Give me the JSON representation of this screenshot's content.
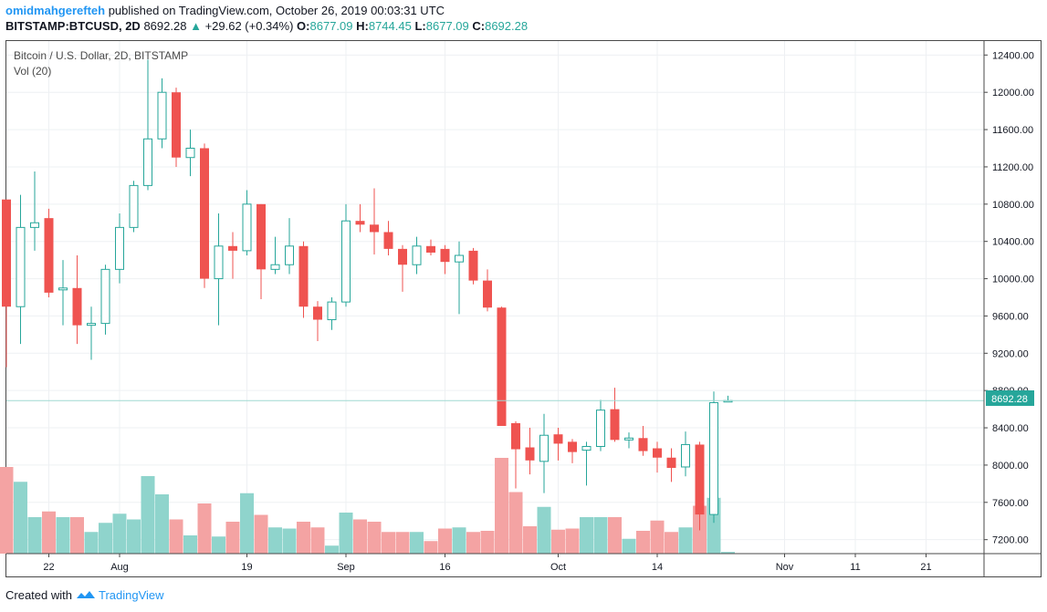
{
  "header": {
    "author": "omidmahgerefteh",
    "published": "published on TradingView.com, October 26, 2019 00:03:31 UTC",
    "symbol_line": {
      "symbol": "BITSTAMP:BTCUSD, 2D",
      "price": "8692.28",
      "arrow": "▲",
      "change": "+29.62 (+0.34%)",
      "o_label": "O:",
      "o_value": "8677.09",
      "h_label": "H:",
      "h_value": "8744.45",
      "l_label": "L:",
      "l_value": "8677.09",
      "c_label": "C:",
      "c_value": "8692.28"
    }
  },
  "legend": {
    "title": "Bitcoin / U.S. Dollar, 2D, BITSTAMP",
    "volume": "Vol (20)"
  },
  "price_tag": "8692.28",
  "footer": {
    "prefix": "Created with",
    "brand": "TradingView"
  },
  "colors": {
    "up": "#26a69a",
    "down": "#ef5350",
    "vol_up": "#8fd4cc",
    "vol_down": "#f4a3a3",
    "grid": "#eef0f3",
    "text": "#131722",
    "brand": "#2196f3"
  },
  "chart_data": {
    "type": "candlestick",
    "title": "Bitcoin / U.S. Dollar, 2D, BITSTAMP",
    "ylim": [
      7050,
      12550
    ],
    "y_ticks": [
      "12400.00",
      "12000.00",
      "11600.00",
      "11200.00",
      "10800.00",
      "10400.00",
      "10000.00",
      "9600.00",
      "9200.00",
      "8800.00",
      "8400.00",
      "8000.00",
      "7600.00",
      "7200.00"
    ],
    "x_ticks": [
      {
        "label": "22",
        "i": 3
      },
      {
        "label": "Aug",
        "i": 8
      },
      {
        "label": "19",
        "i": 17
      },
      {
        "label": "Sep",
        "i": 24
      },
      {
        "label": "16",
        "i": 31
      },
      {
        "label": "Oct",
        "i": 39
      },
      {
        "label": "14",
        "i": 46
      },
      {
        "label": "Nov",
        "i": 55
      },
      {
        "label": "11",
        "i": 60
      },
      {
        "label": "21",
        "i": 65
      }
    ],
    "candles": [
      {
        "o": 10850,
        "h": 10850,
        "l": 9050,
        "c": 9700
      },
      {
        "o": 9700,
        "h": 10900,
        "l": 9300,
        "c": 10550
      },
      {
        "o": 10550,
        "h": 11150,
        "l": 10300,
        "c": 10600
      },
      {
        "o": 10650,
        "h": 10750,
        "l": 9800,
        "c": 9850
      },
      {
        "o": 9880,
        "h": 10200,
        "l": 9500,
        "c": 9900
      },
      {
        "o": 9900,
        "h": 10250,
        "l": 9300,
        "c": 9500
      },
      {
        "o": 9500,
        "h": 9700,
        "l": 9130,
        "c": 9520
      },
      {
        "o": 9520,
        "h": 10150,
        "l": 9400,
        "c": 10100
      },
      {
        "o": 10100,
        "h": 10700,
        "l": 9950,
        "c": 10550
      },
      {
        "o": 10550,
        "h": 11050,
        "l": 10500,
        "c": 11000
      },
      {
        "o": 11000,
        "h": 12350,
        "l": 10950,
        "c": 11500
      },
      {
        "o": 11500,
        "h": 12150,
        "l": 11400,
        "c": 12000
      },
      {
        "o": 12000,
        "h": 12050,
        "l": 11200,
        "c": 11300
      },
      {
        "o": 11300,
        "h": 11600,
        "l": 11100,
        "c": 11400
      },
      {
        "o": 11400,
        "h": 11450,
        "l": 9900,
        "c": 10000
      },
      {
        "o": 10000,
        "h": 10700,
        "l": 9500,
        "c": 10350
      },
      {
        "o": 10350,
        "h": 10500,
        "l": 10000,
        "c": 10300
      },
      {
        "o": 10300,
        "h": 10950,
        "l": 10250,
        "c": 10800
      },
      {
        "o": 10800,
        "h": 10800,
        "l": 9780,
        "c": 10100
      },
      {
        "o": 10100,
        "h": 10450,
        "l": 10050,
        "c": 10150
      },
      {
        "o": 10150,
        "h": 10650,
        "l": 10050,
        "c": 10350
      },
      {
        "o": 10350,
        "h": 10400,
        "l": 9580,
        "c": 9700
      },
      {
        "o": 9700,
        "h": 9760,
        "l": 9330,
        "c": 9560
      },
      {
        "o": 9560,
        "h": 9800,
        "l": 9450,
        "c": 9750
      },
      {
        "o": 9750,
        "h": 10800,
        "l": 9700,
        "c": 10620
      },
      {
        "o": 10620,
        "h": 10800,
        "l": 10500,
        "c": 10580
      },
      {
        "o": 10580,
        "h": 10970,
        "l": 10260,
        "c": 10500
      },
      {
        "o": 10500,
        "h": 10620,
        "l": 10250,
        "c": 10320
      },
      {
        "o": 10320,
        "h": 10360,
        "l": 9860,
        "c": 10150
      },
      {
        "o": 10150,
        "h": 10450,
        "l": 10050,
        "c": 10350
      },
      {
        "o": 10350,
        "h": 10420,
        "l": 10250,
        "c": 10280
      },
      {
        "o": 10320,
        "h": 10360,
        "l": 10050,
        "c": 10180
      },
      {
        "o": 10180,
        "h": 10400,
        "l": 9620,
        "c": 10250
      },
      {
        "o": 10300,
        "h": 10330,
        "l": 9940,
        "c": 9980
      },
      {
        "o": 9980,
        "h": 10100,
        "l": 9650,
        "c": 9690
      },
      {
        "o": 9690,
        "h": 9700,
        "l": 8420,
        "c": 8420
      },
      {
        "o": 8450,
        "h": 8470,
        "l": 7750,
        "c": 8170
      },
      {
        "o": 8190,
        "h": 8400,
        "l": 7900,
        "c": 8050
      },
      {
        "o": 8040,
        "h": 8550,
        "l": 7700,
        "c": 8320
      },
      {
        "o": 8330,
        "h": 8400,
        "l": 8050,
        "c": 8230
      },
      {
        "o": 8250,
        "h": 8280,
        "l": 8020,
        "c": 8140
      },
      {
        "o": 8160,
        "h": 8250,
        "l": 7780,
        "c": 8200
      },
      {
        "o": 8200,
        "h": 8700,
        "l": 8150,
        "c": 8590
      },
      {
        "o": 8600,
        "h": 8830,
        "l": 8250,
        "c": 8270
      },
      {
        "o": 8270,
        "h": 8350,
        "l": 8180,
        "c": 8290
      },
      {
        "o": 8290,
        "h": 8420,
        "l": 8100,
        "c": 8150
      },
      {
        "o": 8180,
        "h": 8250,
        "l": 7920,
        "c": 8080
      },
      {
        "o": 8080,
        "h": 8180,
        "l": 7820,
        "c": 7970
      },
      {
        "o": 7980,
        "h": 8360,
        "l": 7880,
        "c": 8220
      },
      {
        "o": 8220,
        "h": 8250,
        "l": 7300,
        "c": 7470
      },
      {
        "o": 7470,
        "h": 8790,
        "l": 7380,
        "c": 8670
      },
      {
        "o": 8677.09,
        "h": 8744.45,
        "l": 8677.09,
        "c": 8692.28
      }
    ],
    "volume_relative": [
      0.76,
      0.63,
      0.32,
      0.37,
      0.32,
      0.32,
      0.19,
      0.27,
      0.35,
      0.3,
      0.68,
      0.52,
      0.3,
      0.16,
      0.44,
      0.15,
      0.28,
      0.53,
      0.34,
      0.23,
      0.22,
      0.28,
      0.23,
      0.07,
      0.36,
      0.3,
      0.28,
      0.19,
      0.19,
      0.19,
      0.11,
      0.22,
      0.23,
      0.19,
      0.2,
      0.84,
      0.54,
      0.24,
      0.41,
      0.21,
      0.22,
      0.32,
      0.32,
      0.32,
      0.13,
      0.2,
      0.29,
      0.19,
      0.23,
      0.42,
      0.49,
      0.015
    ],
    "last_price": 8692.28
  }
}
